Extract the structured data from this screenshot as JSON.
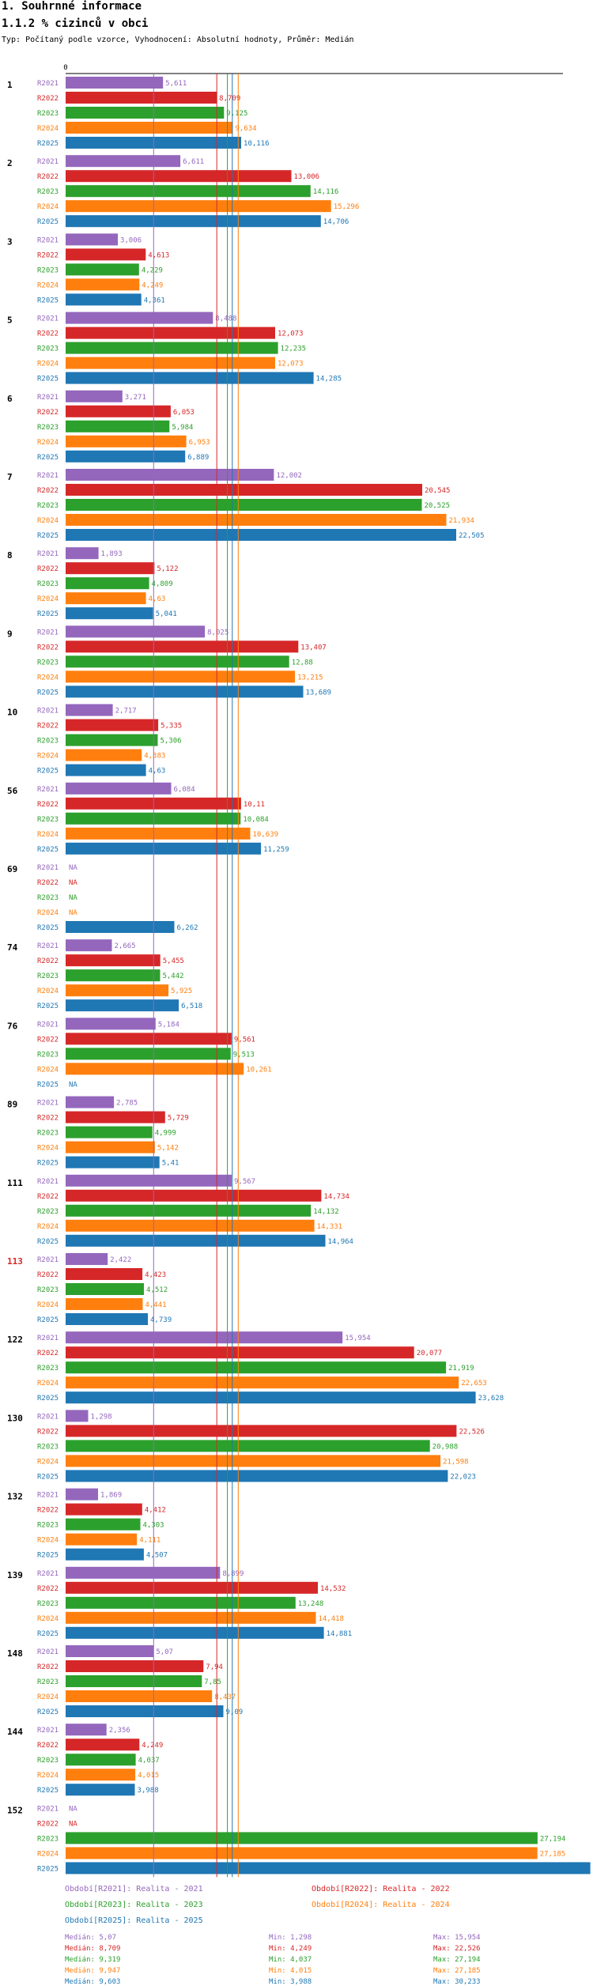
{
  "header": {
    "title": "1. Souhrnné informace",
    "subtitle": "1.1.2 % cizinců v obci",
    "type_line": "Typ: Počítaný podle vzorce, Vyhodnocení: Absolutní hodnoty, Průměr: Medián"
  },
  "chart_data": {
    "type": "bar",
    "orientation": "horizontal",
    "x_tick_labels": [
      "0"
    ],
    "categories": [
      "1",
      "2",
      "3",
      "5",
      "6",
      "7",
      "8",
      "9",
      "10",
      "56",
      "69",
      "74",
      "76",
      "89",
      "111",
      "113",
      "122",
      "130",
      "132",
      "139",
      "148",
      "144",
      "152"
    ],
    "highlighted_category": "113",
    "series": [
      {
        "name": "R2021",
        "color": "#9467bd",
        "values": [
          "5,611",
          "6,611",
          "3,006",
          "8,488",
          "3,271",
          "12,002",
          "1,893",
          "8,025",
          "2,717",
          "6,084",
          "NA",
          "2,665",
          "5,184",
          "2,785",
          "9,567",
          "2,422",
          "15,954",
          "1,298",
          "1,869",
          "8,899",
          "5,07",
          "2,356",
          "NA"
        ]
      },
      {
        "name": "R2022",
        "color": "#d62728",
        "values": [
          "8,709",
          "13,006",
          "4,613",
          "12,073",
          "6,053",
          "20,545",
          "5,122",
          "13,407",
          "5,335",
          "10,11",
          "NA",
          "5,455",
          "9,561",
          "5,729",
          "14,734",
          "4,423",
          "20,077",
          "22,526",
          "4,412",
          "14,532",
          "7,94",
          "4,249",
          "NA"
        ]
      },
      {
        "name": "R2023",
        "color": "#2ca02c",
        "values": [
          "9,125",
          "14,116",
          "4,229",
          "12,235",
          "5,984",
          "20,525",
          "4,809",
          "12,88",
          "5,306",
          "10,084",
          "NA",
          "5,442",
          "9,513",
          "4,999",
          "14,132",
          "4,512",
          "21,919",
          "20,988",
          "4,303",
          "13,248",
          "7,85",
          "4,037",
          "27,194"
        ]
      },
      {
        "name": "R2024",
        "color": "#ff7f0e",
        "values": [
          "9,634",
          "15,296",
          "4,249",
          "12,073",
          "6,953",
          "21,934",
          "4,63",
          "13,215",
          "4,383",
          "10,639",
          "NA",
          "5,925",
          "10,261",
          "5,142",
          "14,331",
          "4,441",
          "22,653",
          "21,598",
          "4,111",
          "14,418",
          "8,437",
          "4,015",
          "27,185"
        ]
      },
      {
        "name": "R2025",
        "color": "#1f77b4",
        "values": [
          "10,116",
          "14,706",
          "4,361",
          "14,285",
          "6,889",
          "22,505",
          "5,041",
          "13,689",
          "4,63",
          "11,259",
          "6,262",
          "6,518",
          "NA",
          "5,41",
          "14,964",
          "4,739",
          "23,628",
          "22,023",
          "4,507",
          "14,881",
          "9,09",
          "3,988",
          "30,233"
        ]
      }
    ],
    "reference_lines": [
      {
        "name": "Medián R2021",
        "value": 5.07,
        "color": "#9467bd"
      },
      {
        "name": "Medián R2022",
        "value": 8.709,
        "color": "#d62728"
      },
      {
        "name": "Medián R2023",
        "value": 9.319,
        "color": "#2ca02c"
      },
      {
        "name": "Medián R2024",
        "value": 9.947,
        "color": "#ff7f0e"
      },
      {
        "name": "Medián R2025",
        "value": 9.603,
        "color": "#1f77b4"
      }
    ],
    "legend": [
      {
        "label": "Období[R2021]: Realita - 2021",
        "color": "#9467bd"
      },
      {
        "label": "Období[R2022]: Realita - 2022",
        "color": "#d62728"
      },
      {
        "label": "Období[R2023]: Realita - 2023",
        "color": "#2ca02c"
      },
      {
        "label": "Období[R2024]: Realita - 2024",
        "color": "#ff7f0e"
      },
      {
        "label": "Období[R2025]: Realita - 2025",
        "color": "#1f77b4"
      }
    ],
    "stats": [
      {
        "median": "Medián: 5,07",
        "min": "Min: 1,298",
        "max": "Max: 15,954",
        "color": "#9467bd"
      },
      {
        "median": "Medián: 8,709",
        "min": "Min: 4,249",
        "max": "Max: 22,526",
        "color": "#d62728"
      },
      {
        "median": "Medián: 9,319",
        "min": "Min: 4,037",
        "max": "Max: 27,194",
        "color": "#2ca02c"
      },
      {
        "median": "Medián: 9,947",
        "min": "Min: 4,015",
        "max": "Max: 27,185",
        "color": "#ff7f0e"
      },
      {
        "median": "Medián: 9,603",
        "min": "Min: 3,988",
        "max": "Max: 30,233",
        "color": "#1f77b4"
      }
    ]
  }
}
